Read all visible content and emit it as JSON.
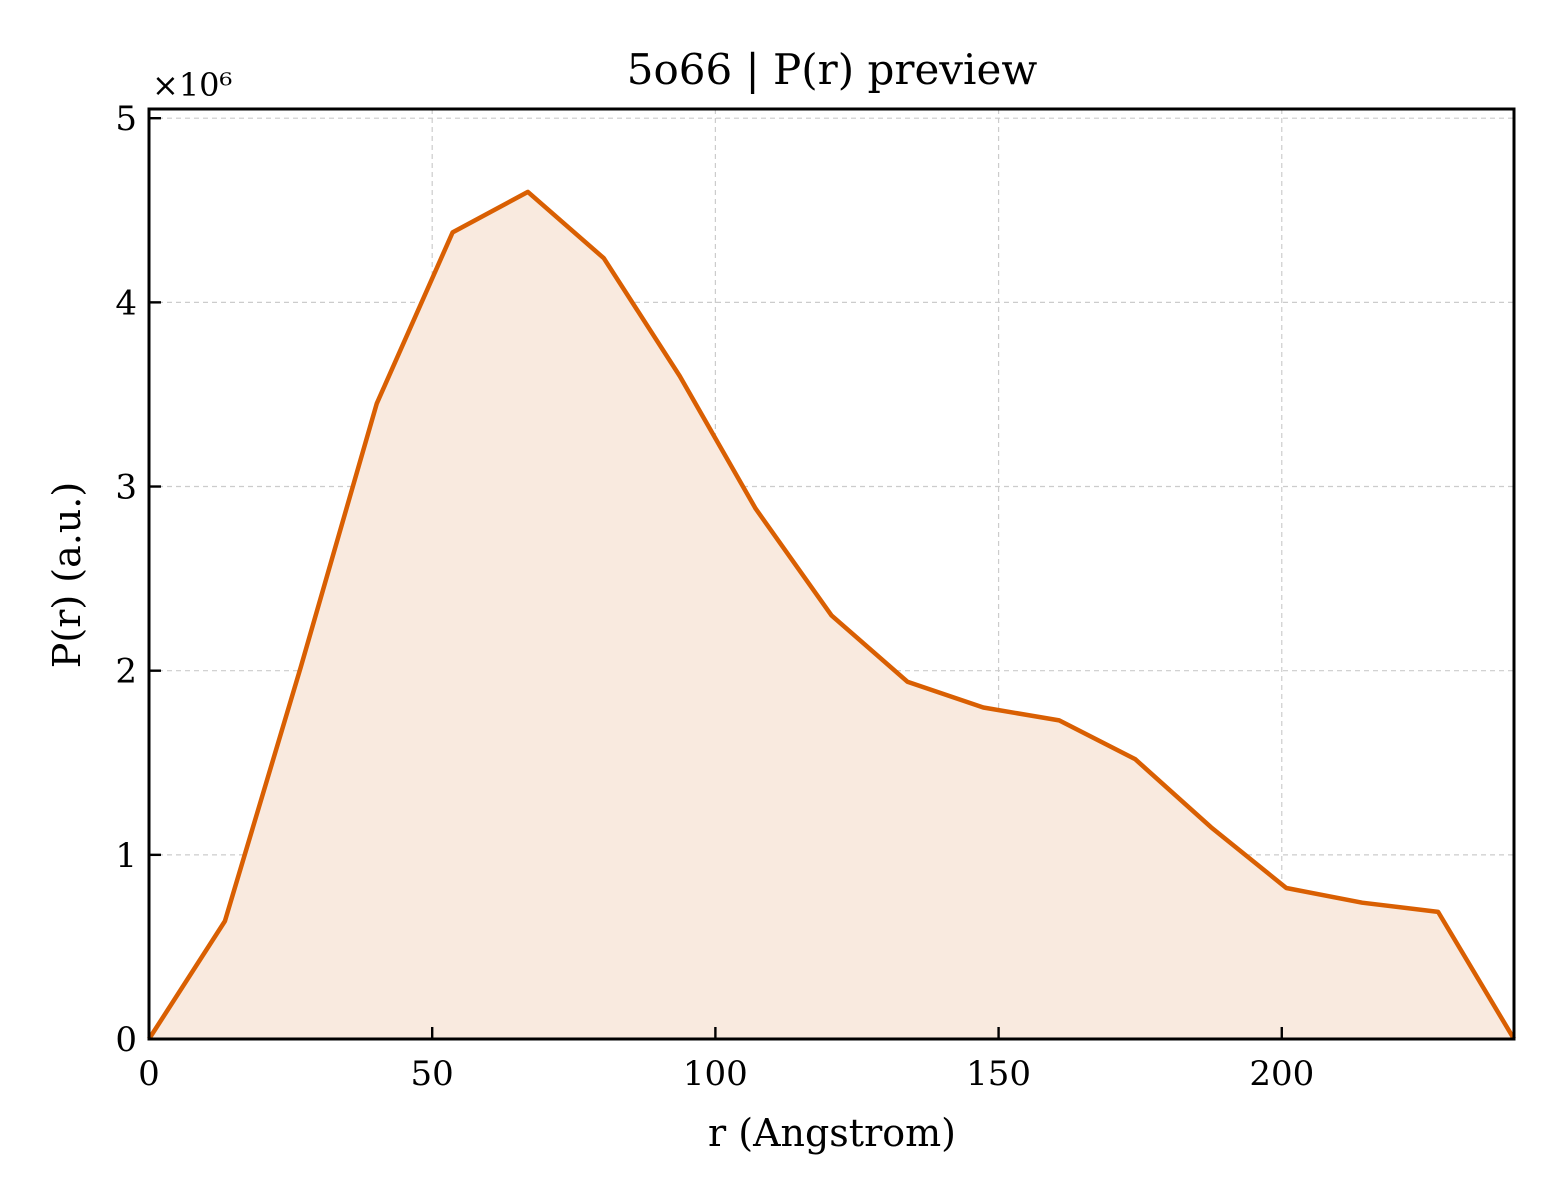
{
  "chart_data": {
    "type": "area",
    "title": "5o66 | P(r) preview",
    "xlabel": "r (Angstrom)",
    "ylabel": "P(r) (a.u.)",
    "y_multiplier_label": "×10⁶",
    "xlim": [
      0,
      241
    ],
    "ylim": [
      0,
      5.05
    ],
    "x_ticks": [
      0,
      50,
      100,
      150,
      200
    ],
    "y_ticks": [
      0,
      1,
      2,
      3,
      4,
      5
    ],
    "grid": true,
    "line_color": "#d95f02",
    "fill_color": "#f9eadf",
    "series": [
      {
        "x": [
          0,
          13.4,
          26.8,
          40.2,
          53.6,
          66.9,
          80.3,
          93.7,
          107.1,
          120.5,
          133.9,
          147.3,
          160.7,
          174.1,
          187.5,
          200.8,
          214.2,
          227.6,
          241
        ],
        "y": [
          0,
          0.64,
          2.02,
          3.45,
          4.38,
          4.6,
          4.24,
          3.6,
          2.88,
          2.3,
          1.94,
          1.8,
          1.73,
          1.52,
          1.15,
          0.82,
          0.74,
          0.69,
          0
        ]
      }
    ]
  }
}
